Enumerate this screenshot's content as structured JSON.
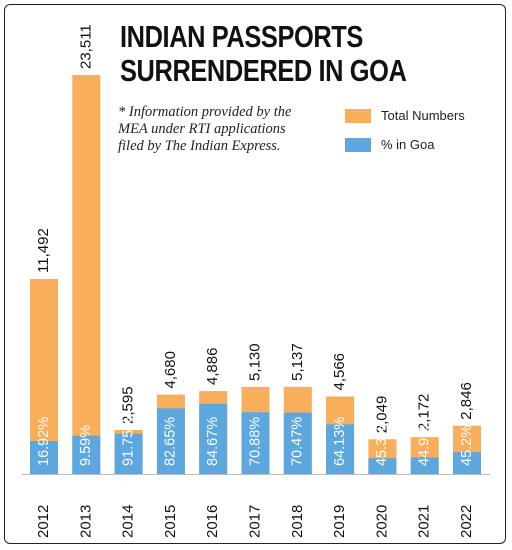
{
  "title_lines": [
    "INDIAN PASSPORTS",
    "SURRENDERED IN GOA"
  ],
  "note_lines": [
    "* Information provided by the",
    "MEA under RTI applications",
    "filed by The Indian Express."
  ],
  "colors": {
    "total": "#F9AE5B",
    "goa": "#5BA7DE",
    "text": "#111111"
  },
  "legend": [
    {
      "label": "Total Numbers",
      "color": "#F9AE5B"
    },
    {
      "label": "% in Goa",
      "color": "#5BA7DE"
    }
  ],
  "chart_data": {
    "type": "bar",
    "categories": [
      "2012",
      "2013",
      "2014",
      "2015",
      "2016",
      "2017",
      "2018",
      "2019",
      "2020",
      "2021",
      "2022"
    ],
    "series": [
      {
        "name": "Total Numbers",
        "values": [
          11492,
          23511,
          2595,
          4680,
          4886,
          5130,
          5137,
          4566,
          2049,
          2172,
          2846
        ],
        "labels": [
          "11,492",
          "23,511",
          "2,595",
          "4,680",
          "4,886",
          "5,130",
          "5,137",
          "4,566",
          "2,049",
          "2,172",
          "2,846"
        ]
      },
      {
        "name": "% in Goa",
        "values": [
          16.92,
          9.59,
          91.75,
          82.65,
          84.67,
          70.88,
          70.47,
          64.13,
          45.3,
          44.9,
          45.2
        ],
        "labels": [
          "16.92%",
          "9.59%",
          "91.75%",
          "82.65%",
          "84.67%",
          "70.88%",
          "70.47%",
          "64.13%",
          "45.3%",
          "44.9%",
          "45.2%"
        ]
      }
    ]
  }
}
